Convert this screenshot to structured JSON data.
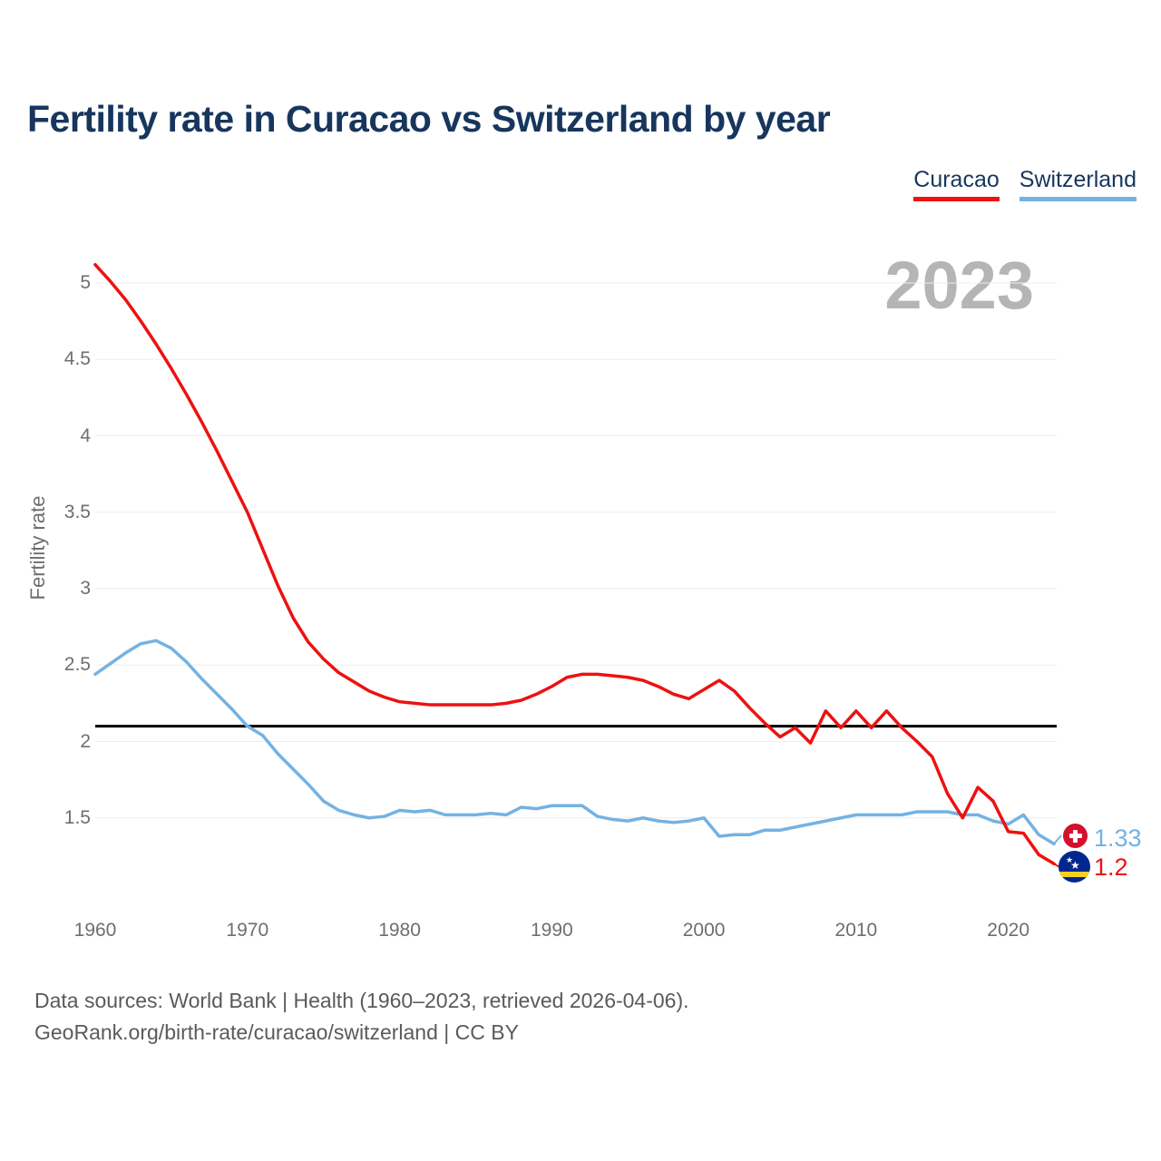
{
  "header": {
    "title": "Fertility rate in Curacao vs Switzerland by year"
  },
  "legend": {
    "items": [
      {
        "label": "Curacao",
        "color": "#ee1111"
      },
      {
        "label": "Switzerland",
        "color": "#74b2e2"
      }
    ]
  },
  "watermark": {
    "year_label": "2023"
  },
  "y_axis": {
    "title": "Fertility rate",
    "tick_labels": [
      "5",
      "4.5",
      "4",
      "3.5",
      "3",
      "2.5",
      "2",
      "1.5"
    ],
    "tick_values": [
      5,
      4.5,
      4,
      3.5,
      3,
      2.5,
      2,
      1.5
    ]
  },
  "x_axis": {
    "tick_labels": [
      "1960",
      "1970",
      "1980",
      "1990",
      "2000",
      "2010",
      "2020"
    ],
    "tick_values": [
      1960,
      1970,
      1980,
      1990,
      2000,
      2010,
      2020
    ]
  },
  "chart_data": {
    "type": "line",
    "title": "Fertility rate in Curacao vs Switzerland by year",
    "ylabel": "Fertility rate",
    "xlabel": "",
    "ylim": [
      1.1,
      5.2
    ],
    "xlim": [
      1960,
      2023
    ],
    "grid": "horizontal",
    "legend_position": "top-right",
    "reference_line": {
      "value": 2.1,
      "color": "#000000"
    },
    "years": [
      1960,
      1961,
      1962,
      1963,
      1964,
      1965,
      1966,
      1967,
      1968,
      1969,
      1970,
      1971,
      1972,
      1973,
      1974,
      1975,
      1976,
      1977,
      1978,
      1979,
      1980,
      1981,
      1982,
      1983,
      1984,
      1985,
      1986,
      1987,
      1988,
      1989,
      1990,
      1991,
      1992,
      1993,
      1994,
      1995,
      1996,
      1997,
      1998,
      1999,
      2000,
      2001,
      2002,
      2003,
      2004,
      2005,
      2006,
      2007,
      2008,
      2009,
      2010,
      2011,
      2012,
      2013,
      2014,
      2015,
      2016,
      2017,
      2018,
      2019,
      2020,
      2021,
      2022,
      2023
    ],
    "series": [
      {
        "name": "Curacao",
        "color": "#ee1111",
        "values": [
          5.12,
          5.01,
          4.89,
          4.75,
          4.6,
          4.44,
          4.27,
          4.09,
          3.9,
          3.7,
          3.5,
          3.26,
          3.02,
          2.81,
          2.65,
          2.54,
          2.45,
          2.39,
          2.33,
          2.29,
          2.26,
          2.25,
          2.24,
          2.24,
          2.24,
          2.24,
          2.24,
          2.25,
          2.27,
          2.31,
          2.36,
          2.42,
          2.44,
          2.44,
          2.43,
          2.42,
          2.4,
          2.36,
          2.31,
          2.28,
          2.34,
          2.4,
          2.33,
          2.22,
          2.12,
          2.03,
          2.09,
          1.99,
          2.2,
          2.09,
          2.2,
          2.09,
          2.2,
          2.09,
          2.0,
          1.9,
          1.66,
          1.5,
          1.7,
          1.61,
          1.41,
          1.4,
          1.26,
          1.2
        ],
        "end_label": {
          "text": "1.2",
          "flag": "curacao-flag"
        }
      },
      {
        "name": "Switzerland",
        "color": "#74b2e2",
        "values": [
          2.44,
          2.51,
          2.58,
          2.64,
          2.66,
          2.61,
          2.52,
          2.41,
          2.31,
          2.21,
          2.1,
          2.04,
          1.92,
          1.82,
          1.72,
          1.61,
          1.55,
          1.52,
          1.5,
          1.51,
          1.55,
          1.54,
          1.55,
          1.52,
          1.52,
          1.52,
          1.53,
          1.52,
          1.57,
          1.56,
          1.58,
          1.58,
          1.58,
          1.51,
          1.49,
          1.48,
          1.5,
          1.48,
          1.47,
          1.48,
          1.5,
          1.38,
          1.39,
          1.39,
          1.42,
          1.42,
          1.44,
          1.46,
          1.48,
          1.5,
          1.52,
          1.52,
          1.52,
          1.52,
          1.54,
          1.54,
          1.54,
          1.52,
          1.52,
          1.48,
          1.46,
          1.52,
          1.39,
          1.33
        ],
        "end_label": {
          "text": "1.33",
          "flag": "switzerland-flag"
        }
      }
    ]
  },
  "footer": {
    "line1": "Data sources: World Bank | Health (1960–2023, retrieved 2026-04-06).",
    "line2": "GeoRank.org/birth-rate/curacao/switzerland | CC BY"
  },
  "colors": {
    "title_text": "#17365d",
    "axis_text": "#6e6e6e",
    "watermark": "#b5b5b5",
    "grid": "#ededed",
    "reference_line": "#000000",
    "swiss_flag_red": "#d50f2e",
    "curacao_flag_blue": "#00278d",
    "curacao_flag_yellow": "#f5d020"
  }
}
